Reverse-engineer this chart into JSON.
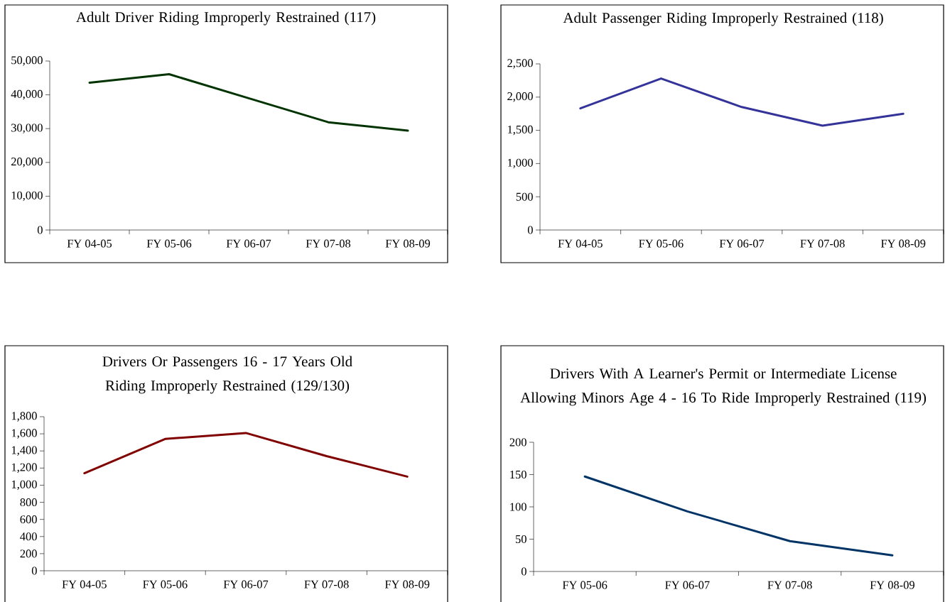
{
  "chart_data": [
    {
      "type": "line",
      "title": "Adult Driver Riding Improperly Restrained (117)",
      "categories": [
        "FY 04-05",
        "FY 05-06",
        "FY 06-07",
        "FY 07-08",
        "FY 08-09"
      ],
      "series": [
        {
          "color": "#003300",
          "values": [
            43600,
            46100,
            39000,
            31900,
            29400
          ]
        }
      ],
      "ylim": [
        0,
        50000
      ],
      "yticks": [
        0,
        {
          "value": 10000,
          "label": "10,000"
        },
        {
          "value": 20000,
          "label": "20,000"
        },
        {
          "value": 30000,
          "label": "30,000"
        },
        {
          "value": 40000,
          "label": "40,000"
        },
        {
          "value": 50000,
          "label": "50,000"
        }
      ],
      "grid": false,
      "marker": "none"
    },
    {
      "type": "line",
      "title": "Adult Passenger Riding Improperly Restrained (118)",
      "categories": [
        "FY 04-05",
        "FY 05-06",
        "FY 06-07",
        "FY 07-08",
        "FY 08-09"
      ],
      "series": [
        {
          "color": "#333399",
          "values": [
            1830,
            2280,
            1850,
            1570,
            1750
          ]
        }
      ],
      "ylim": [
        0,
        2500
      ],
      "yticks": [
        0,
        500,
        {
          "value": 1000,
          "label": "1,000"
        },
        {
          "value": 1500,
          "label": "1,500"
        },
        {
          "value": 2000,
          "label": "2,000"
        },
        {
          "value": 2500,
          "label": "2,500"
        }
      ],
      "grid": false,
      "marker": "none"
    },
    {
      "type": "line",
      "title": "Drivers Or Passengers 16 - 17 Years Old Riding Improperly Restrained (129/130)",
      "categories": [
        "FY 04-05",
        "FY 05-06",
        "FY 06-07",
        "FY 07-08",
        "FY 08-09"
      ],
      "series": [
        {
          "color": "#800000",
          "values": [
            1140,
            1540,
            1610,
            1340,
            1100
          ]
        }
      ],
      "ylim": [
        0,
        1800
      ],
      "yticks": [
        0,
        200,
        400,
        600,
        800,
        {
          "value": 1000,
          "label": "1,000"
        },
        {
          "value": 1200,
          "label": "1,200"
        },
        {
          "value": 1400,
          "label": "1,400"
        },
        {
          "value": 1600,
          "label": "1,600"
        },
        {
          "value": 1800,
          "label": "1,800"
        }
      ],
      "grid": false,
      "marker": "none"
    },
    {
      "type": "line",
      "title": "Drivers With A Learner's Permit or Intermediate License Allowing Minors Age 4 - 16 To Ride Improperly Restrained (119)",
      "categories": [
        "FY 05-06",
        "FY 06-07",
        "FY 07-08",
        "FY 08-09"
      ],
      "series": [
        {
          "color": "#003366",
          "values": [
            147,
            93,
            47,
            25
          ]
        }
      ],
      "ylim": [
        0,
        200
      ],
      "yticks": [
        0,
        50,
        100,
        150,
        200
      ],
      "grid": false,
      "marker": "none"
    }
  ]
}
